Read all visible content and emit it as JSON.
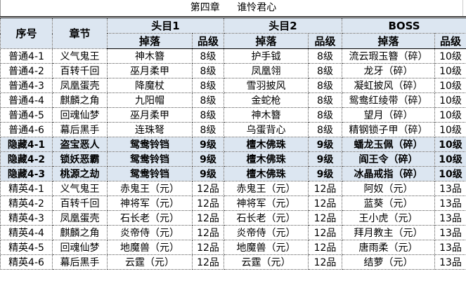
{
  "title": {
    "chapter": "第四章",
    "name": "谁怜君心"
  },
  "header": {
    "col_index": "序号",
    "col_section": "章节",
    "groups": [
      "头目1",
      "头目2",
      "BOSS"
    ],
    "drop": "掉落",
    "grade": "品级"
  },
  "colors": {
    "header_bg": "#dce6f1",
    "hidden_row_bg": "#dce6f1"
  },
  "rows": [
    {
      "type": "normal",
      "cells": [
        "普通4-1",
        "义气鬼王",
        "神木簪",
        "8级",
        "护手钺",
        "8级",
        "流云瑕玉簪（碎）",
        "10级"
      ]
    },
    {
      "type": "normal",
      "cells": [
        "普通4-2",
        "百转千回",
        "巫月柔甲",
        "8级",
        "凤凰翎",
        "8级",
        "龙牙（碎）",
        "10级"
      ]
    },
    {
      "type": "normal",
      "cells": [
        "普通4-3",
        "凤凰蛋壳",
        "降魔杖",
        "8级",
        "雪羽披风",
        "8级",
        "凝虹披风（碎）",
        "10级"
      ]
    },
    {
      "type": "normal",
      "cells": [
        "普通4-4",
        "麒麟之角",
        "九阳帽",
        "8级",
        "金蛇枪",
        "8级",
        "鸳鸯红绫带（碎）",
        "10级"
      ]
    },
    {
      "type": "normal",
      "cells": [
        "普通4-5",
        "回魂仙梦",
        "巫月柔甲",
        "8级",
        "神木簪",
        "8级",
        "望月（碎）",
        "10级"
      ]
    },
    {
      "type": "normal",
      "cells": [
        "普通4-6",
        "幕后黑手",
        "连珠弩",
        "8级",
        "乌蛋背心",
        "8级",
        "精钢锁子甲（碎）",
        "10级"
      ]
    },
    {
      "type": "hidden",
      "cells": [
        "隐藏4-1",
        "盗宝恶人",
        "鸳鸯铃铛",
        "9级",
        "檀木佛珠",
        "9级",
        "蟠龙玉佩（碎）",
        "10级"
      ]
    },
    {
      "type": "hidden",
      "cells": [
        "隐藏4-2",
        "锁妖恶霸",
        "鸳鸯铃铛",
        "9级",
        "檀木佛珠",
        "9级",
        "阎王令（碎）",
        "10级"
      ]
    },
    {
      "type": "hidden",
      "cells": [
        "隐藏4-3",
        "桃源之劫",
        "鸳鸯铃铛",
        "9级",
        "檀木佛珠",
        "9级",
        "冰晶戒指（碎）",
        "10级"
      ]
    },
    {
      "type": "elite",
      "cells": [
        "精英4-1",
        "义气鬼王",
        "赤鬼王（元）",
        "12品",
        "赤鬼王（元）",
        "12品",
        "阿奴（元）",
        "13品"
      ]
    },
    {
      "type": "elite",
      "cells": [
        "精英4-2",
        "百转千回",
        "神将军（元）",
        "12品",
        "神将军（元）",
        "12品",
        "蓝葵（元）",
        "13品"
      ]
    },
    {
      "type": "elite",
      "cells": [
        "精英4-3",
        "凤凰蛋壳",
        "石长老（元）",
        "12品",
        "石长老（元）",
        "12品",
        "王小虎（元）",
        "13品"
      ]
    },
    {
      "type": "elite",
      "cells": [
        "精英4-4",
        "麒麟之角",
        "炎帝侍（元）",
        "12品",
        "炎帝侍（元）",
        "12品",
        "拜月教主（元）",
        "13品"
      ]
    },
    {
      "type": "elite",
      "cells": [
        "精英4-5",
        "回魂仙梦",
        "地魔兽（元）",
        "12品",
        "地魔兽（元）",
        "12品",
        "唐雨柔（元）",
        "13品"
      ]
    },
    {
      "type": "elite",
      "cells": [
        "精英4-6",
        "幕后黑手",
        "云霆（元）",
        "12品",
        "云霆（元）",
        "12品",
        "结萝（元）",
        "13品"
      ]
    }
  ]
}
